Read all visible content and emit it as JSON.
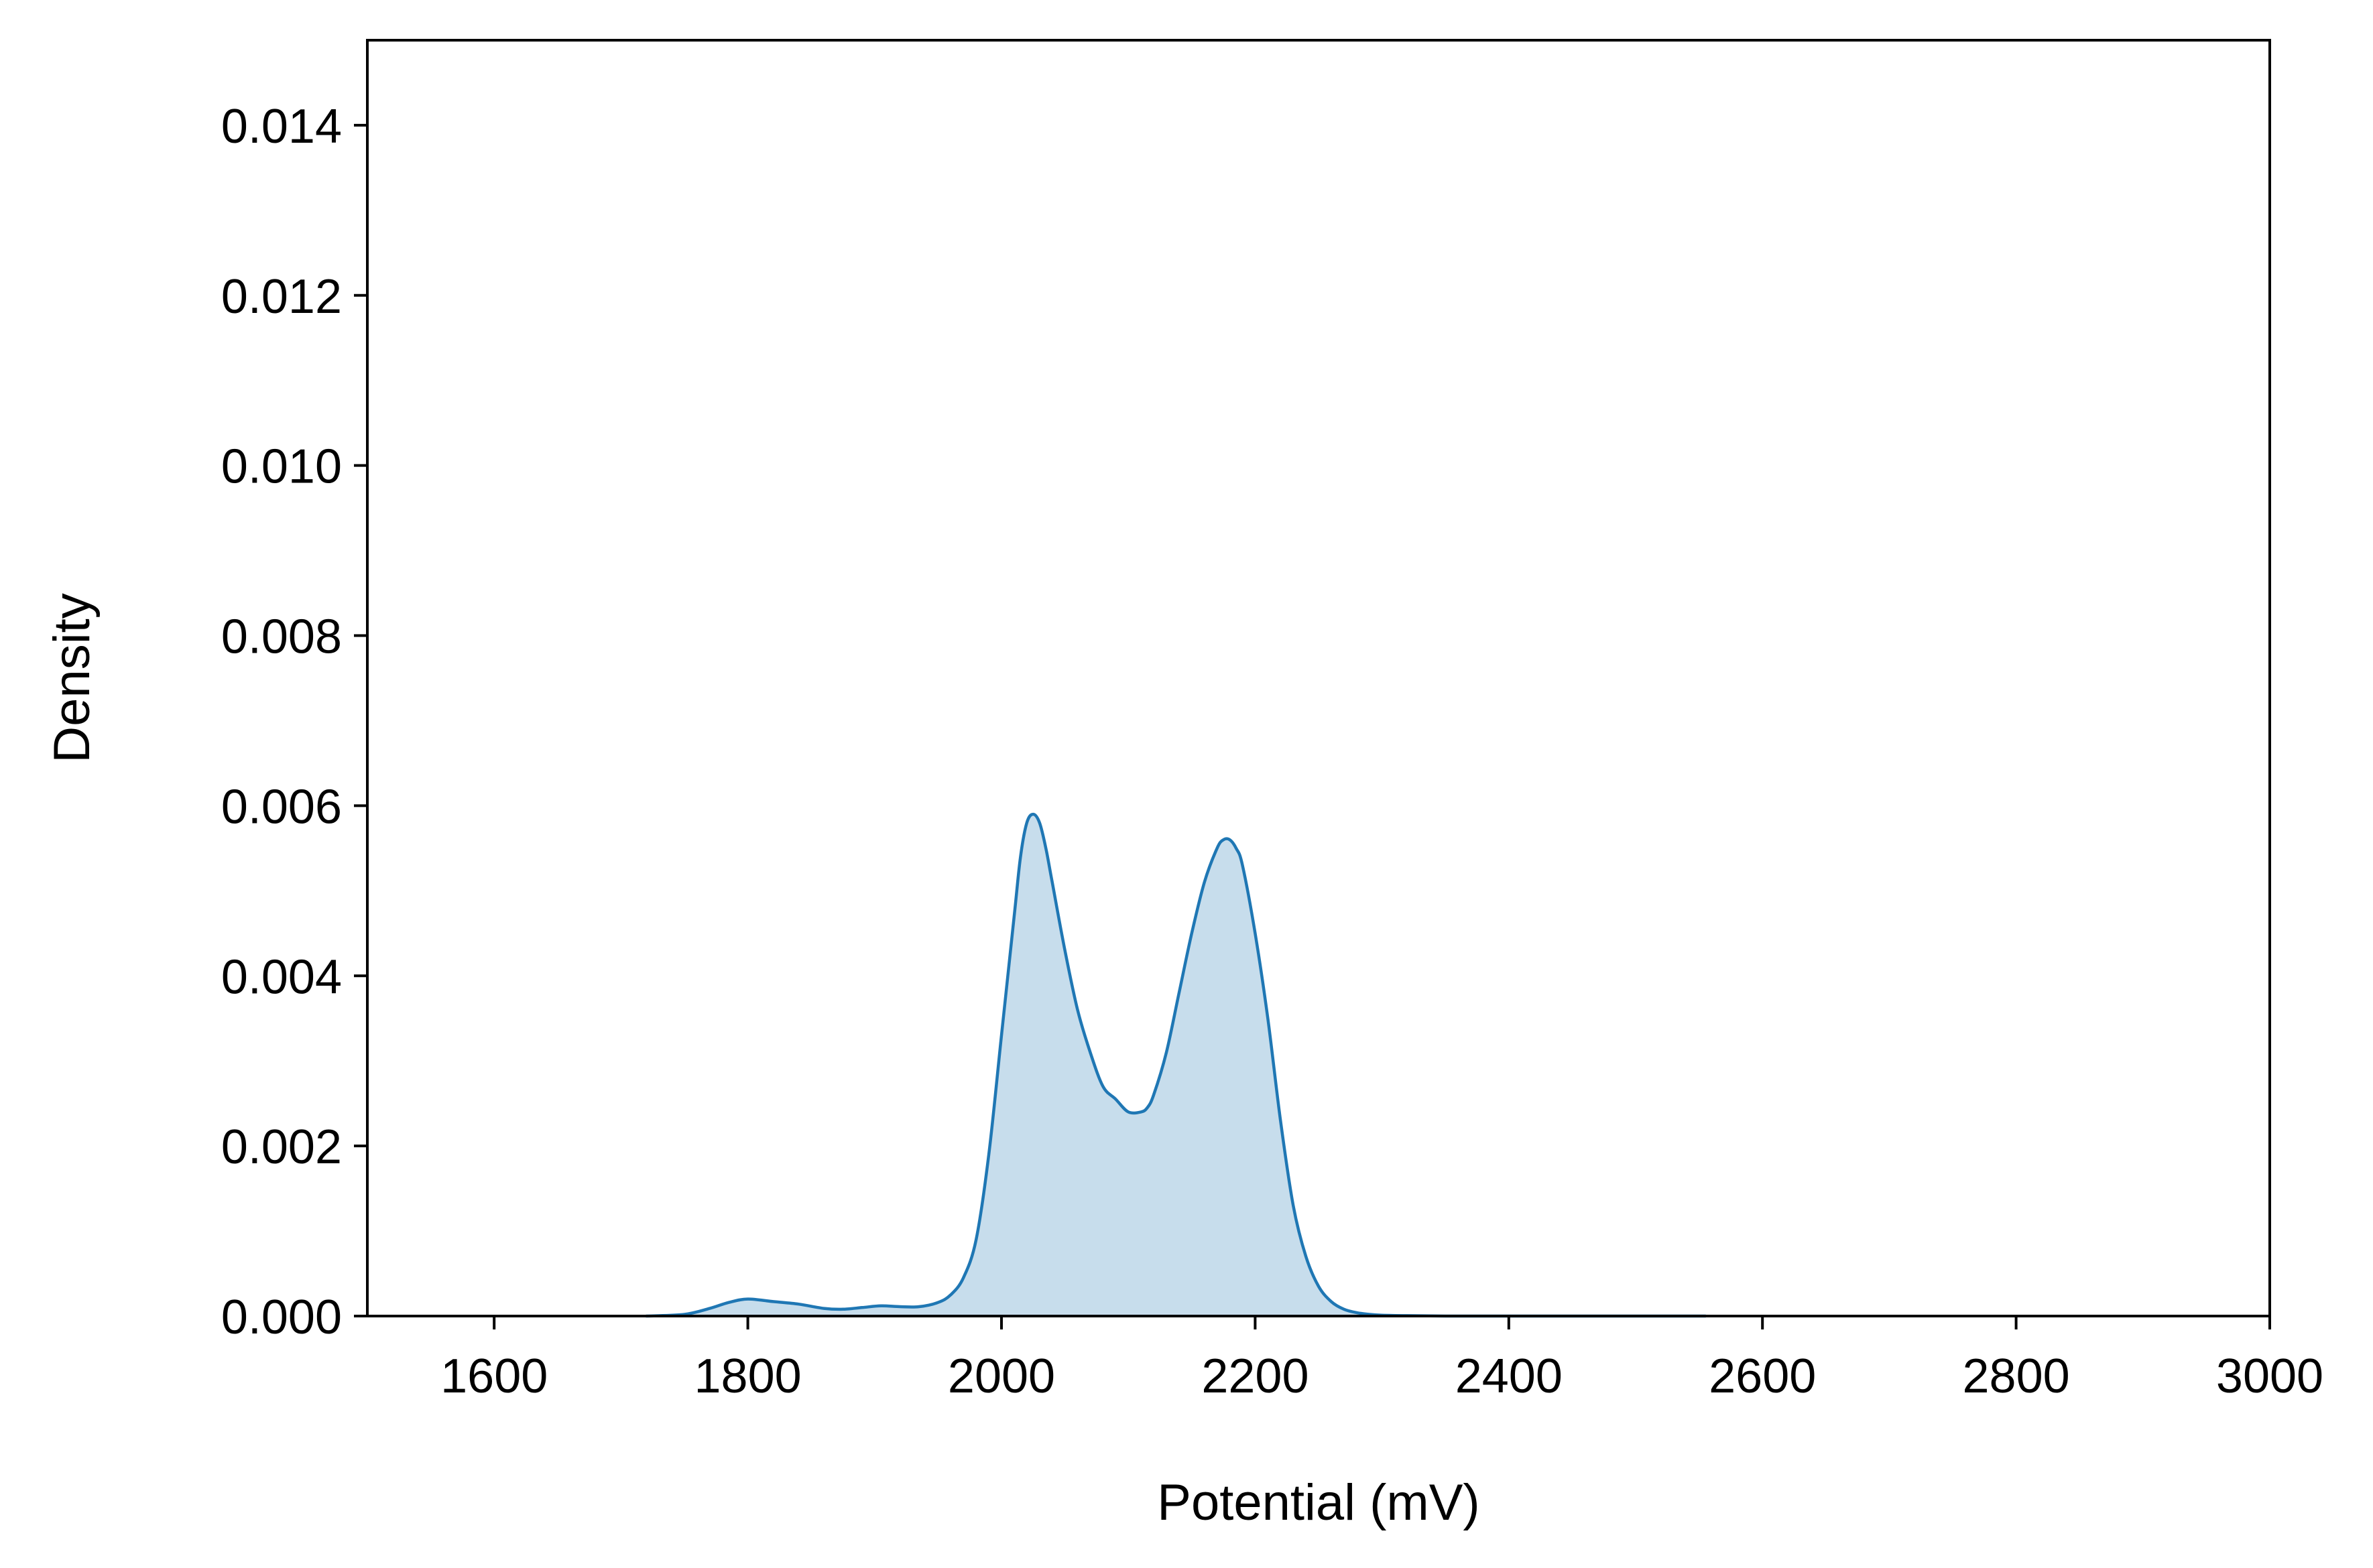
{
  "chart_data": {
    "type": "area",
    "xlabel": "Potential (mV)",
    "ylabel": "Density",
    "xlim": [
      1500,
      3000
    ],
    "ylim": [
      0,
      0.015
    ],
    "x_ticks": [
      1600,
      1800,
      2000,
      2200,
      2400,
      2600,
      2800,
      3000
    ],
    "x_tick_labels": [
      "1600",
      "1800",
      "2000",
      "2200",
      "2400",
      "2600",
      "2800",
      "3000"
    ],
    "y_ticks": [
      0,
      0.002,
      0.004,
      0.006,
      0.008,
      0.01,
      0.012,
      0.014
    ],
    "y_tick_labels": [
      "0.000",
      "0.002",
      "0.004",
      "0.006",
      "0.008",
      "0.010",
      "0.012",
      "0.014"
    ],
    "grid": false,
    "legend": "none",
    "colors": {
      "line": "#1f77b4",
      "fill": "#1f77b4",
      "fill_opacity": 0.25
    },
    "series": [
      {
        "x": [
          1720,
          1750,
          1770,
          1785,
          1800,
          1820,
          1840,
          1860,
          1875,
          1890,
          1905,
          1920,
          1935,
          1950,
          1960,
          1970,
          1980,
          1990,
          2000,
          2010,
          2015,
          2020,
          2025,
          2030,
          2035,
          2040,
          2050,
          2060,
          2070,
          2080,
          2090,
          2100,
          2110,
          2115,
          2120,
          2130,
          2140,
          2150,
          2160,
          2170,
          2175,
          2180,
          2185,
          2190,
          2200,
          2210,
          2220,
          2230,
          2240,
          2250,
          2260,
          2270,
          2280,
          2290,
          2300,
          2320,
          2350,
          2400,
          2450,
          2500,
          2555
        ],
        "y": [
          0.0,
          2e-05,
          9e-05,
          0.00016,
          0.0002,
          0.00017,
          0.00014,
          9e-05,
          8e-05,
          0.0001,
          0.00012,
          0.00011,
          0.00011,
          0.00016,
          0.00025,
          0.00045,
          0.0009,
          0.0019,
          0.0033,
          0.0047,
          0.0054,
          0.0058,
          0.0059,
          0.0058,
          0.0055,
          0.0051,
          0.0043,
          0.0036,
          0.0031,
          0.0027,
          0.00255,
          0.0024,
          0.0024,
          0.00245,
          0.0026,
          0.0031,
          0.0038,
          0.0045,
          0.0051,
          0.0055,
          0.0056,
          0.0056,
          0.0055,
          0.0053,
          0.0045,
          0.0035,
          0.0023,
          0.0013,
          0.0007,
          0.00035,
          0.00017,
          8e-05,
          4e-05,
          2e-05,
          1e-05,
          5e-06,
          0.0,
          0.0,
          0.0,
          0.0,
          0.0
        ]
      }
    ]
  }
}
